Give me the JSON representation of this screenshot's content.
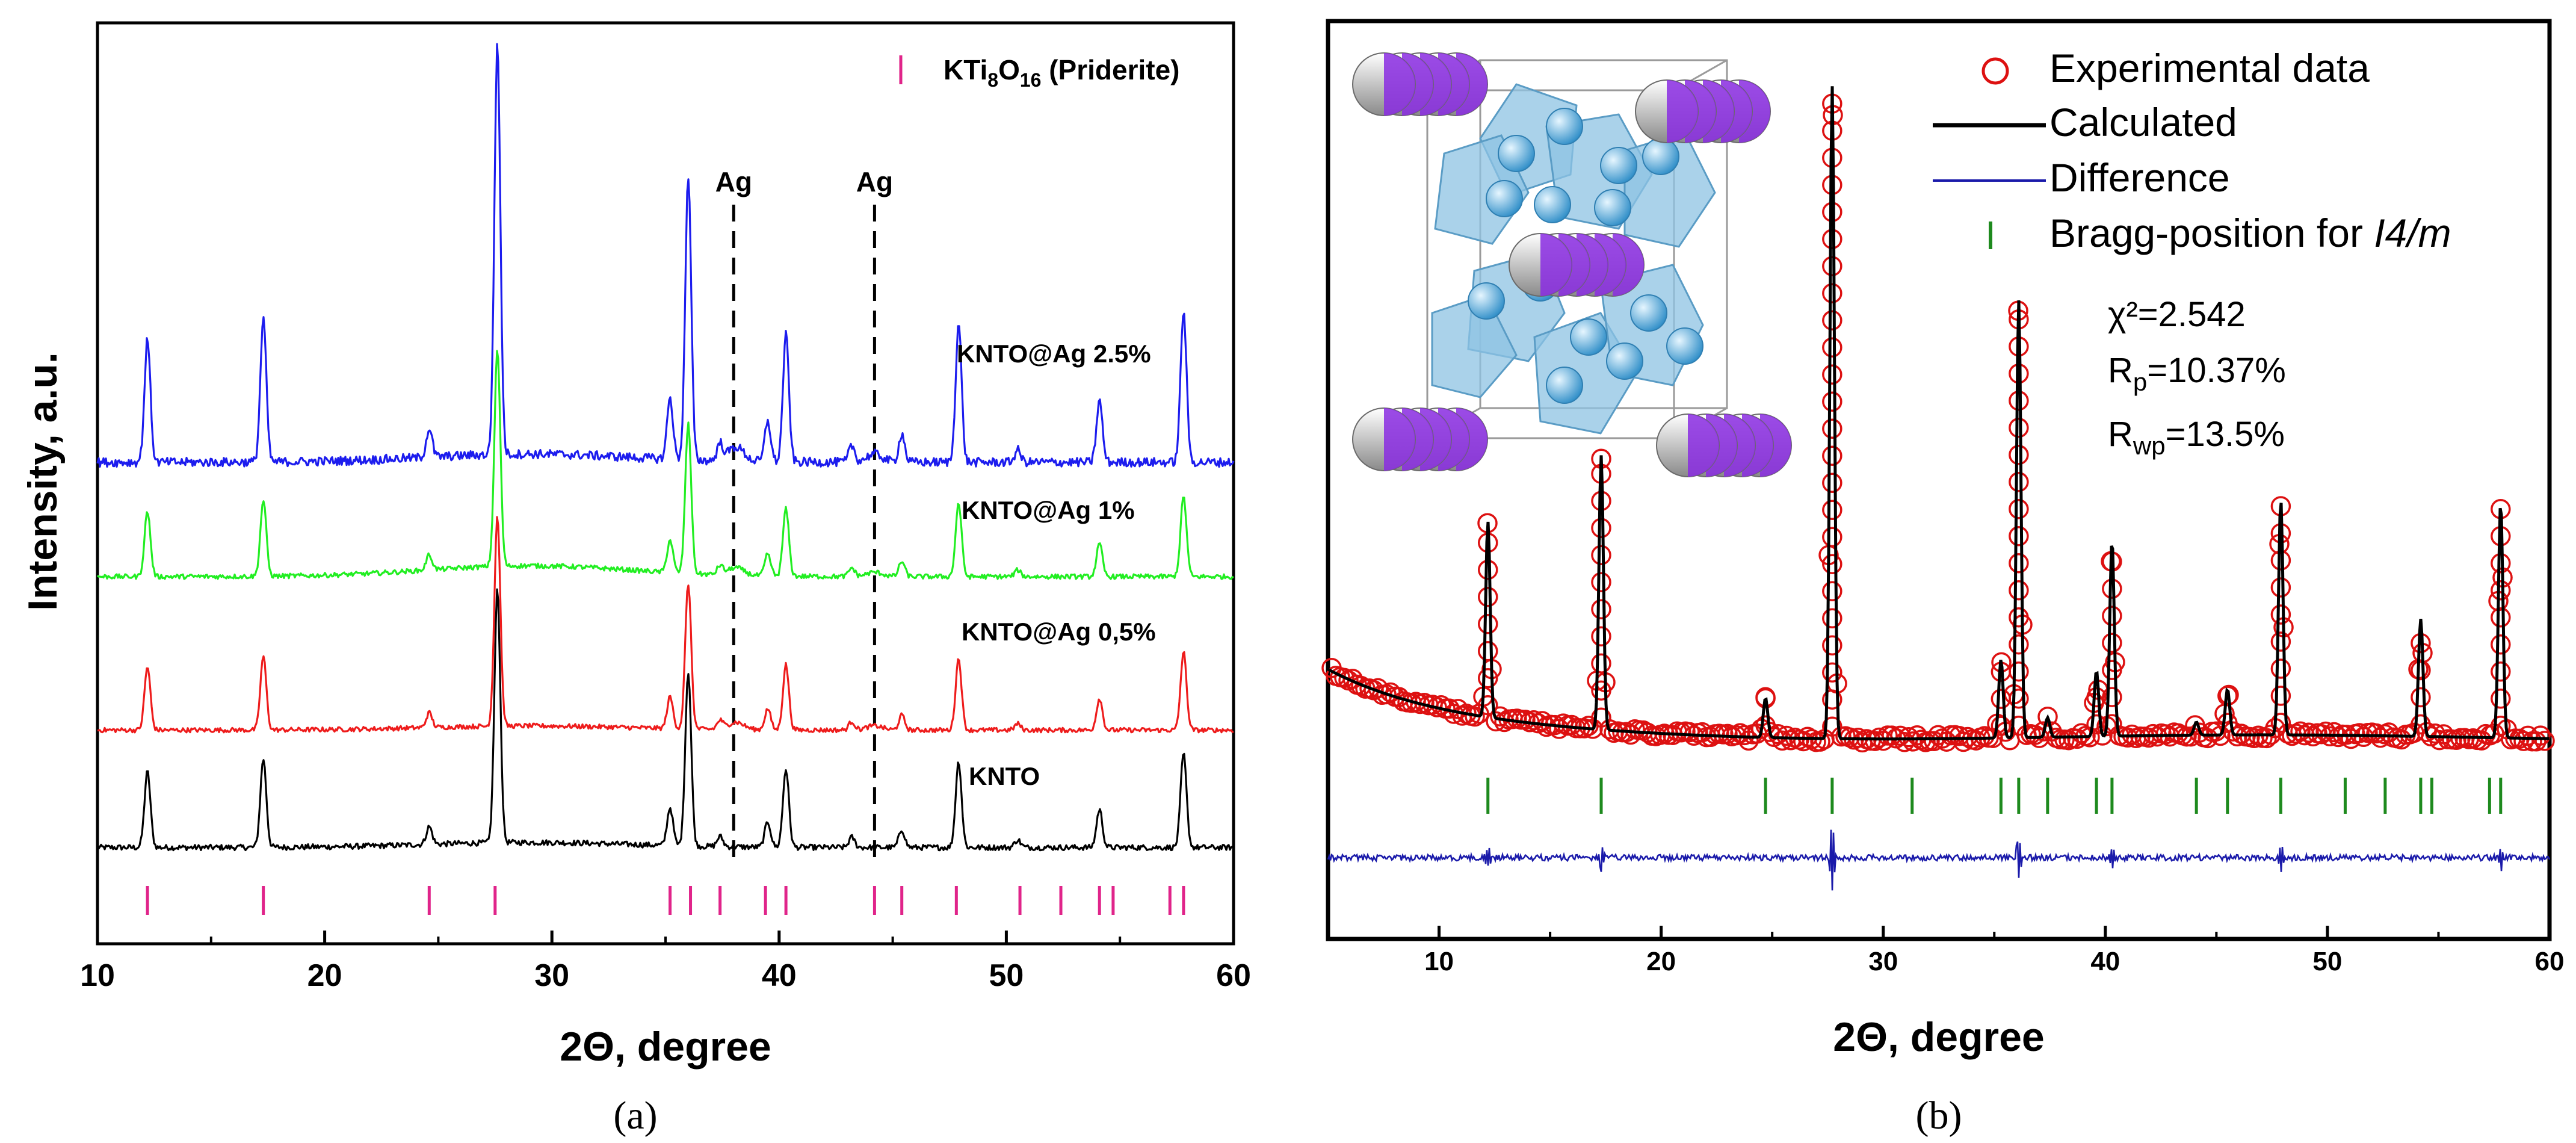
{
  "chart_data": [
    {
      "type": "line",
      "panel_label": "(a)",
      "title": "",
      "xlabel": "2Θ, degree",
      "ylabel": "Intensity, a.u.",
      "xlim": [
        10,
        60
      ],
      "x_ticks": [
        "10",
        "20",
        "30",
        "40",
        "50",
        "60"
      ],
      "legend": {
        "marker": "|",
        "label": "KTi",
        "sub1": "8",
        "mid": "O",
        "sub2": "16",
        "tail": " (Priderite)",
        "color": "#e0248a"
      },
      "ag_lines": [
        {
          "x": 38.0,
          "label": "Ag"
        },
        {
          "x": 44.2,
          "label": "Ag"
        }
      ],
      "reference_ticks": [
        12.2,
        17.3,
        24.6,
        27.5,
        35.2,
        36.1,
        37.4,
        39.4,
        40.3,
        44.2,
        45.4,
        47.8,
        50.6,
        52.4,
        54.1,
        54.7,
        57.2,
        57.8
      ],
      "peaks": [
        {
          "x": 12.2,
          "h": 0.3
        },
        {
          "x": 17.3,
          "h": 0.35
        },
        {
          "x": 24.6,
          "h": 0.07
        },
        {
          "x": 27.6,
          "h": 1.0
        },
        {
          "x": 35.2,
          "h": 0.15
        },
        {
          "x": 36.0,
          "h": 0.69
        },
        {
          "x": 37.4,
          "h": 0.04
        },
        {
          "x": 39.5,
          "h": 0.1
        },
        {
          "x": 40.3,
          "h": 0.31
        },
        {
          "x": 43.2,
          "h": 0.04
        },
        {
          "x": 45.4,
          "h": 0.07
        },
        {
          "x": 47.9,
          "h": 0.34
        },
        {
          "x": 50.5,
          "h": 0.03
        },
        {
          "x": 54.1,
          "h": 0.15
        },
        {
          "x": 57.8,
          "h": 0.37
        }
      ],
      "series": [
        {
          "name": "KNTO",
          "color": "#000000"
        },
        {
          "name": "KNTO@Ag 0,5%",
          "color": "#ee1c1c"
        },
        {
          "name": "KNTO@Ag 1%",
          "color": "#22ee22"
        },
        {
          "name": "KNTO@Ag 2.5%",
          "color": "#1c1cee"
        }
      ]
    },
    {
      "type": "line",
      "panel_label": "(b)",
      "title": "",
      "xlabel": "2Θ, degree",
      "ylabel": "",
      "xlim": [
        5,
        60
      ],
      "x_ticks": [
        "10",
        "20",
        "30",
        "40",
        "50",
        "60"
      ],
      "bragg_positions": [
        12.2,
        17.3,
        24.7,
        27.7,
        31.3,
        35.3,
        36.1,
        37.4,
        39.6,
        40.3,
        44.1,
        45.5,
        47.9,
        50.8,
        52.6,
        54.2,
        54.7,
        57.3,
        57.8
      ],
      "legend": [
        {
          "label": "Experimental data",
          "symbol": "circle",
          "color": "#dd1111"
        },
        {
          "label": "Calculated",
          "symbol": "line",
          "color": "#000000"
        },
        {
          "label": "Difference",
          "symbol": "line",
          "color": "#1a1aaa"
        },
        {
          "label": "Bragg-position for ",
          "label_italic": "I4/m",
          "symbol": "tick",
          "color": "#1e8a1e"
        }
      ],
      "stats": {
        "chi2": "χ²=2.542",
        "rp": "10.37%",
        "rwp": "13.5%"
      },
      "series": [
        {
          "name": "Experimental data",
          "color": "#dd1111"
        },
        {
          "name": "Calculated",
          "color": "#000000"
        },
        {
          "name": "Difference",
          "color": "#1a1aaa"
        }
      ]
    }
  ]
}
